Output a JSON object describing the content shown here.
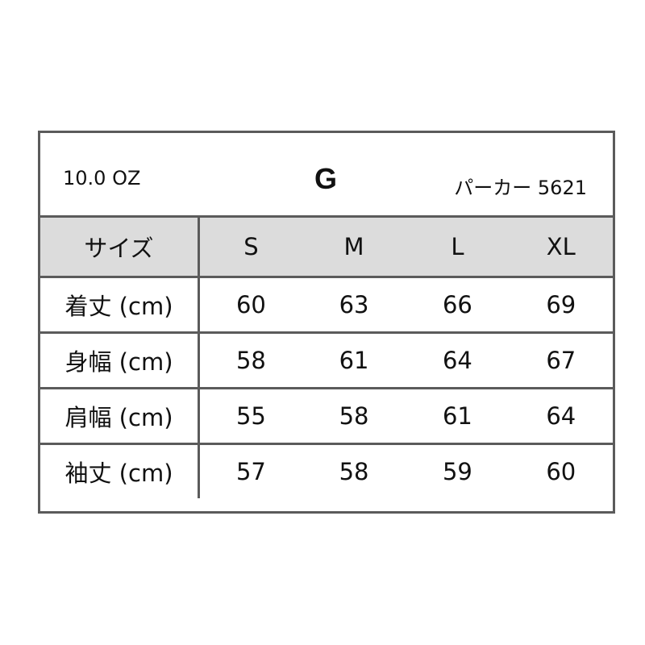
{
  "header": {
    "weight": "10.0 OZ",
    "brand": "G",
    "product": "パーカー 5621"
  },
  "table": {
    "columns": [
      "サイズ",
      "S",
      "M",
      "L",
      "XL"
    ],
    "rows": [
      {
        "label": "着丈 (cm)",
        "values": [
          "60",
          "63",
          "66",
          "69"
        ]
      },
      {
        "label": "身幅 (cm)",
        "values": [
          "58",
          "61",
          "64",
          "67"
        ]
      },
      {
        "label": "肩幅 (cm)",
        "values": [
          "55",
          "58",
          "61",
          "64"
        ]
      },
      {
        "label": "袖丈 (cm)",
        "values": [
          "57",
          "58",
          "59",
          "60"
        ]
      }
    ]
  },
  "colors": {
    "border": "#5b5b5b",
    "header_bg": "#dcdcdc"
  }
}
